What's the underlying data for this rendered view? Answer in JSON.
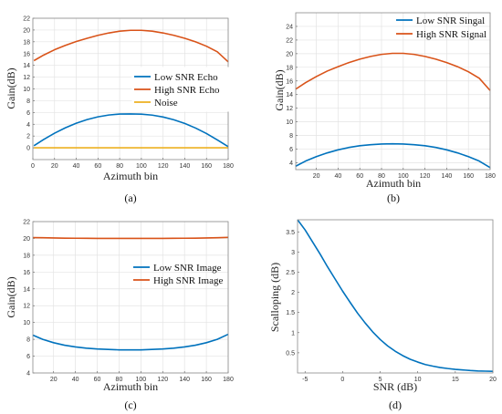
{
  "colors": {
    "blue": "#0072BD",
    "orange": "#D95319",
    "yellow": "#EDB120"
  },
  "chart_data": [
    {
      "type": "line",
      "panel_label": "(a)",
      "xlabel": "Azimuth bin",
      "ylabel": "Gain(dB)",
      "xlim": [
        0,
        180
      ],
      "ylim": [
        -2,
        22
      ],
      "xticks": [
        0,
        20,
        40,
        60,
        80,
        100,
        120,
        140,
        160,
        180
      ],
      "yticks": [
        0,
        2,
        4,
        6,
        8,
        10,
        12,
        14,
        16,
        18,
        20,
        22
      ],
      "grid": true,
      "legend_position": "right-middle",
      "x": [
        1,
        10,
        20,
        30,
        40,
        50,
        60,
        70,
        80,
        90,
        100,
        110,
        120,
        130,
        140,
        150,
        160,
        170,
        180
      ],
      "series": [
        {
          "name": "Low SNR Echo",
          "color": "#0072BD",
          "values": [
            0.35,
            1.42,
            2.48,
            3.4,
            4.17,
            4.79,
            5.26,
            5.57,
            5.73,
            5.75,
            5.71,
            5.55,
            5.23,
            4.76,
            4.13,
            3.35,
            2.42,
            1.34,
            0.2
          ]
        },
        {
          "name": "High SNR Echo",
          "color": "#D95319",
          "values": [
            14.8,
            15.75,
            16.65,
            17.4,
            18.05,
            18.6,
            19.1,
            19.5,
            19.8,
            19.95,
            19.95,
            19.8,
            19.5,
            19.1,
            18.6,
            18.0,
            17.25,
            16.3,
            14.6
          ]
        },
        {
          "name": "Noise",
          "color": "#EDB120",
          "values": [
            0,
            0,
            0,
            0,
            0,
            0,
            0,
            0,
            0,
            0,
            0,
            0,
            0,
            0,
            0,
            0,
            0,
            0,
            0
          ]
        }
      ]
    },
    {
      "type": "line",
      "panel_label": "(b)",
      "xlabel": "Azimuth bin",
      "ylabel": "Gain(dB)",
      "xlim": [
        1,
        180
      ],
      "ylim": [
        3,
        26
      ],
      "xticks": [
        20,
        40,
        60,
        80,
        100,
        120,
        140,
        160,
        180
      ],
      "yticks": [
        4,
        6,
        8,
        10,
        12,
        14,
        16,
        18,
        20,
        22,
        24
      ],
      "grid": true,
      "legend_position": "top-right",
      "x": [
        1,
        10,
        20,
        30,
        40,
        50,
        60,
        70,
        80,
        90,
        100,
        110,
        120,
        130,
        140,
        150,
        160,
        170,
        180
      ],
      "series": [
        {
          "name": "Low SNR Singal",
          "color": "#0072BD",
          "values": [
            3.5,
            4.25,
            4.9,
            5.45,
            5.9,
            6.25,
            6.5,
            6.65,
            6.75,
            6.78,
            6.75,
            6.65,
            6.5,
            6.25,
            5.9,
            5.45,
            4.9,
            4.25,
            3.3
          ]
        },
        {
          "name": "High SNR Signal",
          "color": "#D95319",
          "values": [
            14.8,
            15.75,
            16.65,
            17.45,
            18.1,
            18.7,
            19.2,
            19.6,
            19.9,
            20.05,
            20.05,
            19.9,
            19.6,
            19.2,
            18.7,
            18.1,
            17.35,
            16.4,
            14.6
          ]
        }
      ]
    },
    {
      "type": "line",
      "panel_label": "(c)",
      "xlabel": "Azimuth bin",
      "ylabel": "Gain(dB)",
      "xlim": [
        1,
        180
      ],
      "ylim": [
        4,
        22
      ],
      "xticks": [
        20,
        40,
        60,
        80,
        100,
        120,
        140,
        160,
        180
      ],
      "yticks": [
        4,
        6,
        8,
        10,
        12,
        14,
        16,
        18,
        20,
        22
      ],
      "grid": true,
      "legend_position": "top-right",
      "x": [
        1,
        10,
        20,
        30,
        40,
        50,
        60,
        70,
        80,
        90,
        100,
        110,
        120,
        130,
        140,
        150,
        160,
        170,
        180
      ],
      "series": [
        {
          "name": "Low SNR Image",
          "color": "#0072BD",
          "values": [
            8.5,
            8.0,
            7.6,
            7.3,
            7.1,
            6.95,
            6.85,
            6.8,
            6.75,
            6.75,
            6.75,
            6.8,
            6.85,
            6.95,
            7.1,
            7.3,
            7.6,
            8.0,
            8.6
          ]
        },
        {
          "name": "High SNR Image",
          "color": "#D95319",
          "values": [
            20.1,
            20.08,
            20.05,
            20.03,
            20.02,
            20.01,
            20.0,
            20.0,
            20.0,
            20.0,
            20.0,
            20.0,
            20.0,
            20.01,
            20.02,
            20.03,
            20.05,
            20.08,
            20.12
          ]
        }
      ]
    },
    {
      "type": "line",
      "panel_label": "(d)",
      "xlabel": "SNR (dB)",
      "ylabel": "Scalloping (dB)",
      "xlim": [
        -6,
        20
      ],
      "ylim": [
        0,
        3.8
      ],
      "xticks": [
        -5,
        0,
        5,
        10,
        15,
        20
      ],
      "yticks": [
        0.5,
        1,
        1.5,
        2,
        2.5,
        3,
        3.5
      ],
      "grid": false,
      "x": [
        -6,
        -5,
        -4,
        -3,
        -2,
        -1,
        0,
        1,
        2,
        3,
        4,
        5,
        6,
        7,
        8,
        9,
        10,
        11,
        12,
        13,
        14,
        15,
        16,
        17,
        18,
        19,
        20
      ],
      "series": [
        {
          "name": "",
          "color": "#0072BD",
          "values": [
            3.8,
            3.55,
            3.25,
            2.95,
            2.63,
            2.33,
            2.03,
            1.75,
            1.48,
            1.24,
            1.02,
            0.83,
            0.67,
            0.54,
            0.43,
            0.34,
            0.27,
            0.21,
            0.17,
            0.135,
            0.11,
            0.09,
            0.075,
            0.06,
            0.05,
            0.045,
            0.04
          ]
        }
      ]
    }
  ]
}
